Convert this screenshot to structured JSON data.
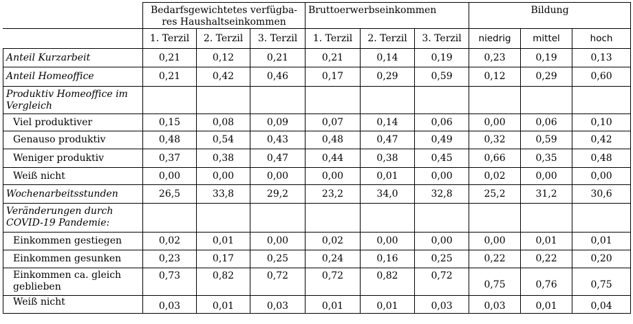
{
  "header": {
    "groups": [
      "Bedarfsgewichtetes verfügba-res Haushaltseinkommen",
      "Bruttoerwerbseinkommen",
      "Bildung"
    ],
    "subheaders": [
      "1. Terzil",
      "2. Terzil",
      "3. Terzil",
      "1. Terzil",
      "2. Terzil",
      "3. Terzil",
      "niedrig",
      "mittel",
      "hoch"
    ]
  },
  "rows": [
    {
      "label": "Anteil Kurzarbeit",
      "values": [
        "0,21",
        "0,12",
        "0,21",
        "0,21",
        "0,14",
        "0,19",
        "0,23",
        "0,19",
        "0,13"
      ]
    },
    {
      "label": "Anteil Homeoffice",
      "values": [
        "0,21",
        "0,42",
        "0,46",
        "0,17",
        "0,29",
        "0,59",
        "0,12",
        "0,29",
        "0,60"
      ]
    },
    {
      "label": "Produktiv Homeoffice im Vergleich",
      "values": []
    },
    {
      "label": "Viel produktiver",
      "values": [
        "0,15",
        "0,08",
        "0,09",
        "0,07",
        "0,14",
        "0,06",
        "0,00",
        "0,06",
        "0,10"
      ]
    },
    {
      "label": "Genauso produktiv",
      "values": [
        "0,48",
        "0,54",
        "0,43",
        "0,48",
        "0,47",
        "0,49",
        "0,32",
        "0,59",
        "0,42"
      ]
    },
    {
      "label": "Weniger produktiv",
      "values": [
        "0,37",
        "0,38",
        "0,47",
        "0,44",
        "0,38",
        "0,45",
        "0,66",
        "0,35",
        "0,48"
      ]
    },
    {
      "label": "Weiß nicht",
      "values": [
        "0,00",
        "0,00",
        "0,00",
        "0,00",
        "0,01",
        "0,00",
        "0,02",
        "0,00",
        "0,00"
      ]
    },
    {
      "label": "Wochenarbeitsstunden",
      "values": [
        "26,5",
        "33,8",
        "29,2",
        "23,2",
        "34,0",
        "32,8",
        "25,2",
        "31,2",
        "30,6"
      ]
    },
    {
      "label": "Veränderungen durch COVID-19 Pandemie:",
      "values": []
    },
    {
      "label": "Einkommen gestiegen",
      "values": [
        "0,02",
        "0,01",
        "0,00",
        "0,02",
        "0,00",
        "0,00",
        "0,00",
        "0,01",
        "0,01"
      ]
    },
    {
      "label": "Einkommen gesunken",
      "values": [
        "0,23",
        "0,17",
        "0,25",
        "0,24",
        "0,16",
        "0,25",
        "0,22",
        "0,22",
        "0,20"
      ]
    },
    {
      "label": "Einkommen ca. gleich geblieben",
      "values": [
        "0,73",
        "0,82",
        "0,72",
        "0,72",
        "0,82",
        "0,72",
        "0,75",
        "0,76",
        "0,75"
      ]
    },
    {
      "label": "Weiß nicht",
      "values": [
        "0,03",
        "0,01",
        "0,03",
        "0,01",
        "0,01",
        "0,03",
        "0,03",
        "0,01",
        "0,04"
      ]
    }
  ]
}
